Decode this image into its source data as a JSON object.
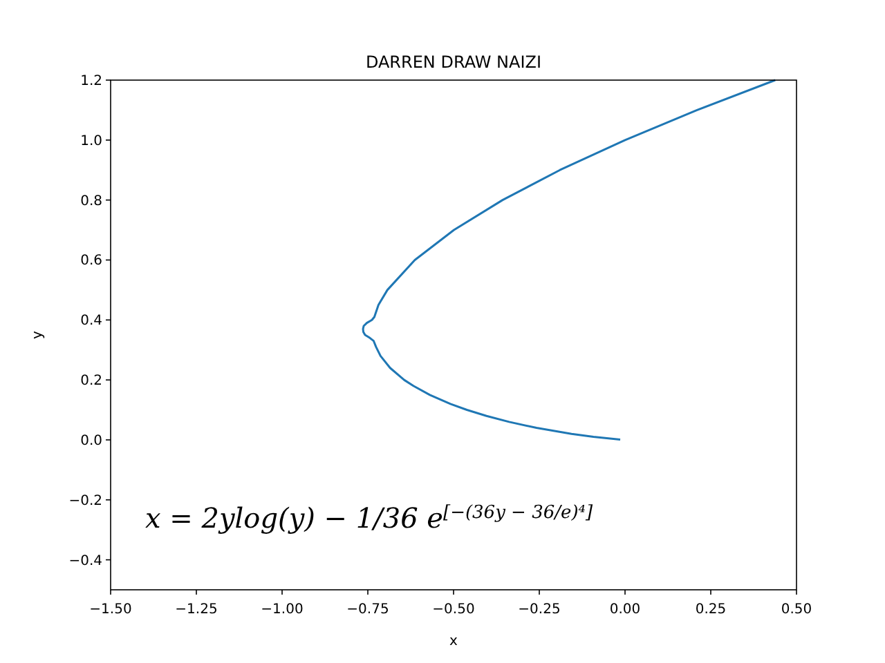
{
  "chart_data": {
    "type": "line",
    "title": "DARREN DRAW NAIZI",
    "xlabel": "x",
    "ylabel": "y",
    "xlim": [
      -1.5,
      0.5
    ],
    "ylim": [
      -0.5,
      1.2
    ],
    "xticks": [
      {
        "value": -1.5,
        "label": "−1.50"
      },
      {
        "value": -1.25,
        "label": "−1.25"
      },
      {
        "value": -1,
        "label": "−1.00"
      },
      {
        "value": -0.75,
        "label": "−0.75"
      },
      {
        "value": -0.5,
        "label": "−0.50"
      },
      {
        "value": -0.25,
        "label": "−0.25"
      },
      {
        "value": 0,
        "label": "0.00"
      },
      {
        "value": 0.25,
        "label": "0.25"
      },
      {
        "value": 0.5,
        "label": "0.50"
      }
    ],
    "yticks": [
      {
        "value": -0.4,
        "label": "−0.4"
      },
      {
        "value": -0.2,
        "label": "−0.2"
      },
      {
        "value": 0,
        "label": "0.0"
      },
      {
        "value": 0.2,
        "label": "0.2"
      },
      {
        "value": 0.4,
        "label": "0.4"
      },
      {
        "value": 0.6,
        "label": "0.6"
      },
      {
        "value": 0.8,
        "label": "0.8"
      },
      {
        "value": 1,
        "label": "1.0"
      },
      {
        "value": 1.2,
        "label": "1.2"
      }
    ],
    "grid": false,
    "series": [
      {
        "color": "#1f77b4",
        "x": [
          -0.014,
          -0.092,
          -0.156,
          -0.258,
          -0.338,
          -0.404,
          -0.461,
          -0.509,
          -0.569,
          -0.617,
          -0.644,
          -0.685,
          -0.713,
          -0.726,
          -0.733,
          -0.744,
          -0.758,
          -0.763,
          -0.764,
          -0.762,
          -0.753,
          -0.738,
          -0.731,
          -0.719,
          -0.693,
          -0.613,
          -0.499,
          -0.357,
          -0.19,
          0,
          0.21,
          0.438
        ],
        "values": [
          0.001,
          0.01,
          0.02,
          0.04,
          0.06,
          0.08,
          0.1,
          0.12,
          0.15,
          0.18,
          0.2,
          0.24,
          0.28,
          0.31,
          0.33,
          0.34,
          0.35,
          0.36,
          0.37,
          0.38,
          0.39,
          0.4,
          0.41,
          0.45,
          0.5,
          0.6,
          0.7,
          0.8,
          0.9,
          1,
          1.1,
          1.2
        ]
      }
    ],
    "annotations": [
      "x = 2ylog(y) − 1/36 e$^{[−(36y − 36/e)⁴]}$"
    ]
  }
}
